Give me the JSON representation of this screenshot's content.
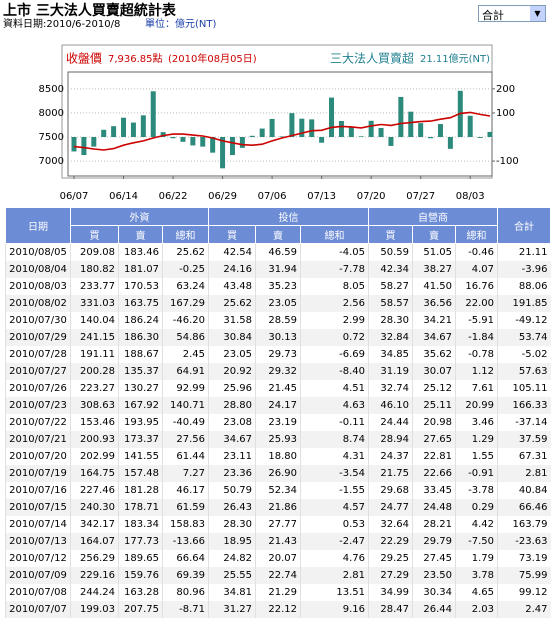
{
  "header": {
    "title": "上市 三大法人買賣超統計表",
    "date_range": "資料日期:2010/6-2010/8",
    "unit": "單位：億元(NT)",
    "select": "合計"
  },
  "chart_data": {
    "type": "combo",
    "categories": [
      "06/07",
      null,
      null,
      null,
      null,
      "06/14",
      null,
      null,
      null,
      null,
      "06/22",
      null,
      null,
      null,
      null,
      "06/29",
      null,
      null,
      null,
      null,
      "07/06",
      null,
      null,
      null,
      null,
      "07/13",
      null,
      null,
      null,
      null,
      "07/20",
      null,
      null,
      null,
      null,
      "07/27",
      null,
      null,
      null,
      null,
      "08/03",
      null,
      null
    ],
    "series": [
      {
        "name": "收盤價",
        "type": "line",
        "color": "#cc0000",
        "latest": "7,936.85點",
        "latest_date": "(2010年08月05日)",
        "values": [
          7300,
          7280,
          7250,
          7230,
          7260,
          7330,
          7380,
          7420,
          7480,
          7530,
          7560,
          7560,
          7540,
          7520,
          7480,
          7420,
          7380,
          7340,
          7330,
          7350,
          7420,
          7480,
          7530,
          7580,
          7630,
          7640,
          7700,
          7720,
          7710,
          7690,
          7730,
          7760,
          7740,
          7780,
          7800,
          7820,
          7830,
          7870,
          7900,
          7990,
          8010,
          7970,
          7936.85
        ]
      },
      {
        "name": "三大法人買賣超",
        "type": "bar",
        "axis": "y2",
        "color": "#2b8a7c",
        "latest": "21.11億元(NT)",
        "values": [
          -60,
          -75,
          -40,
          30,
          45,
          80,
          60,
          90,
          190,
          20,
          -5,
          -20,
          -35,
          -40,
          -65,
          -130,
          -75,
          -45,
          5,
          35,
          75,
          2.47,
          99.12,
          75.99,
          73.19,
          -23.63,
          163.79,
          66.46,
          40.84,
          2.81,
          67.31,
          37.59,
          -37.14,
          166.33,
          105.11,
          57.63,
          -5.02,
          53.74,
          -49.12,
          191.85,
          88.06,
          -3.96,
          21.11
        ]
      }
    ],
    "ylim": [
      6690,
      8850
    ],
    "yticks": [
      7000,
      7500,
      8000,
      8500
    ],
    "y2lim": [
      -162,
      270
    ],
    "y2ticks": [
      -100,
      100,
      200
    ],
    "grid": true
  },
  "table": {
    "group_headers": [
      "日期",
      "外資",
      "投信",
      "自營商",
      "合計"
    ],
    "sub_headers": [
      "買",
      "賣",
      "總和",
      "買",
      "賣",
      "總和",
      "買",
      "賣",
      "總和"
    ],
    "rows": [
      [
        "2010/08/05",
        "209.08",
        "183.46",
        "25.62",
        "42.54",
        "46.59",
        "-4.05",
        "50.59",
        "51.05",
        "-0.46",
        "21.11"
      ],
      [
        "2010/08/04",
        "180.82",
        "181.07",
        "-0.25",
        "24.16",
        "31.94",
        "-7.78",
        "42.34",
        "38.27",
        "4.07",
        "-3.96"
      ],
      [
        "2010/08/03",
        "233.77",
        "170.53",
        "63.24",
        "43.48",
        "35.23",
        "8.05",
        "58.27",
        "41.50",
        "16.76",
        "88.06"
      ],
      [
        "2010/08/02",
        "331.03",
        "163.75",
        "167.29",
        "25.62",
        "23.05",
        "2.56",
        "58.57",
        "36.56",
        "22.00",
        "191.85"
      ],
      [
        "2010/07/30",
        "140.04",
        "186.24",
        "-46.20",
        "31.58",
        "28.59",
        "2.99",
        "28.30",
        "34.21",
        "-5.91",
        "-49.12"
      ],
      [
        "2010/07/29",
        "241.15",
        "186.30",
        "54.86",
        "30.84",
        "30.13",
        "0.72",
        "32.84",
        "34.67",
        "-1.84",
        "53.74"
      ],
      [
        "2010/07/28",
        "191.11",
        "188.67",
        "2.45",
        "23.05",
        "29.73",
        "-6.69",
        "34.85",
        "35.62",
        "-0.78",
        "-5.02"
      ],
      [
        "2010/07/27",
        "200.28",
        "135.37",
        "64.91",
        "20.92",
        "29.32",
        "-8.40",
        "31.19",
        "30.07",
        "1.12",
        "57.63"
      ],
      [
        "2010/07/26",
        "223.27",
        "130.27",
        "92.99",
        "25.96",
        "21.45",
        "4.51",
        "32.74",
        "25.12",
        "7.61",
        "105.11"
      ],
      [
        "2010/07/23",
        "308.63",
        "167.92",
        "140.71",
        "28.80",
        "24.17",
        "4.63",
        "46.10",
        "25.11",
        "20.99",
        "166.33"
      ],
      [
        "2010/07/22",
        "153.46",
        "193.95",
        "-40.49",
        "23.08",
        "23.19",
        "-0.11",
        "24.44",
        "20.98",
        "3.46",
        "-37.14"
      ],
      [
        "2010/07/21",
        "200.93",
        "173.37",
        "27.56",
        "34.67",
        "25.93",
        "8.74",
        "28.94",
        "27.65",
        "1.29",
        "37.59"
      ],
      [
        "2010/07/20",
        "202.99",
        "141.55",
        "61.44",
        "23.11",
        "18.80",
        "4.31",
        "24.37",
        "22.81",
        "1.55",
        "67.31"
      ],
      [
        "2010/07/19",
        "164.75",
        "157.48",
        "7.27",
        "23.36",
        "26.90",
        "-3.54",
        "21.75",
        "22.66",
        "-0.91",
        "2.81"
      ],
      [
        "2010/07/16",
        "227.46",
        "181.28",
        "46.17",
        "50.79",
        "52.34",
        "-1.55",
        "29.68",
        "33.45",
        "-3.78",
        "40.84"
      ],
      [
        "2010/07/15",
        "240.30",
        "178.71",
        "61.59",
        "26.43",
        "21.86",
        "4.57",
        "24.77",
        "24.48",
        "0.29",
        "66.46"
      ],
      [
        "2010/07/14",
        "342.17",
        "183.34",
        "158.83",
        "28.30",
        "27.77",
        "0.53",
        "32.64",
        "28.21",
        "4.42",
        "163.79"
      ],
      [
        "2010/07/13",
        "164.07",
        "177.73",
        "-13.66",
        "18.95",
        "21.43",
        "-2.47",
        "22.29",
        "29.79",
        "-7.50",
        "-23.63"
      ],
      [
        "2010/07/12",
        "256.29",
        "189.65",
        "66.64",
        "24.82",
        "20.07",
        "4.76",
        "29.25",
        "27.45",
        "1.79",
        "73.19"
      ],
      [
        "2010/07/09",
        "229.16",
        "159.76",
        "69.39",
        "25.55",
        "22.74",
        "2.81",
        "27.29",
        "23.50",
        "3.78",
        "75.99"
      ],
      [
        "2010/07/08",
        "244.24",
        "163.28",
        "80.96",
        "34.81",
        "21.29",
        "13.51",
        "34.99",
        "30.34",
        "4.65",
        "99.12"
      ],
      [
        "2010/07/07",
        "199.03",
        "207.75",
        "-8.71",
        "31.27",
        "22.12",
        "9.16",
        "28.47",
        "26.44",
        "2.03",
        "2.47"
      ]
    ]
  }
}
